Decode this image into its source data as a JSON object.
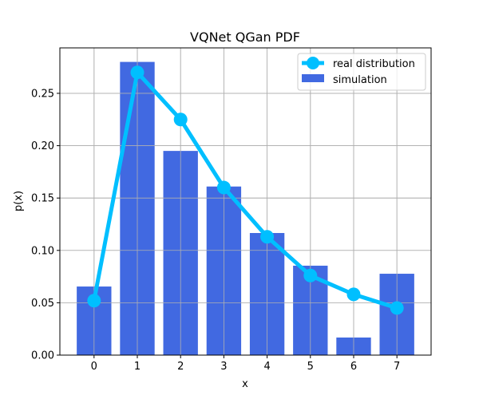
{
  "chart_data": {
    "type": "bar",
    "title": "VQNet QGan PDF",
    "xlabel": "x",
    "ylabel": "p(x)",
    "x": [
      0,
      1,
      2,
      3,
      4,
      5,
      6,
      7
    ],
    "xlim": [
      -0.79,
      7.79
    ],
    "ylim": [
      0,
      0.2934
    ],
    "xticks": [
      "0",
      "1",
      "2",
      "3",
      "4",
      "5",
      "6",
      "7"
    ],
    "yticks": [
      0.0,
      0.05,
      0.1,
      0.15,
      0.2,
      0.25
    ],
    "ytick_labels": [
      "0.00",
      "0.05",
      "0.10",
      "0.15",
      "0.20",
      "0.25"
    ],
    "grid": true,
    "legend_position": "top-right",
    "series": [
      {
        "name": "real distribution",
        "type": "line",
        "color": "#00bfff",
        "values": [
          0.052,
          0.27,
          0.225,
          0.16,
          0.113,
          0.076,
          0.058,
          0.045
        ]
      },
      {
        "name": "simulation",
        "type": "bar",
        "color": "#4169e1",
        "values": [
          0.0655,
          0.28,
          0.195,
          0.161,
          0.1166,
          0.0854,
          0.0168,
          0.0777
        ]
      }
    ]
  }
}
